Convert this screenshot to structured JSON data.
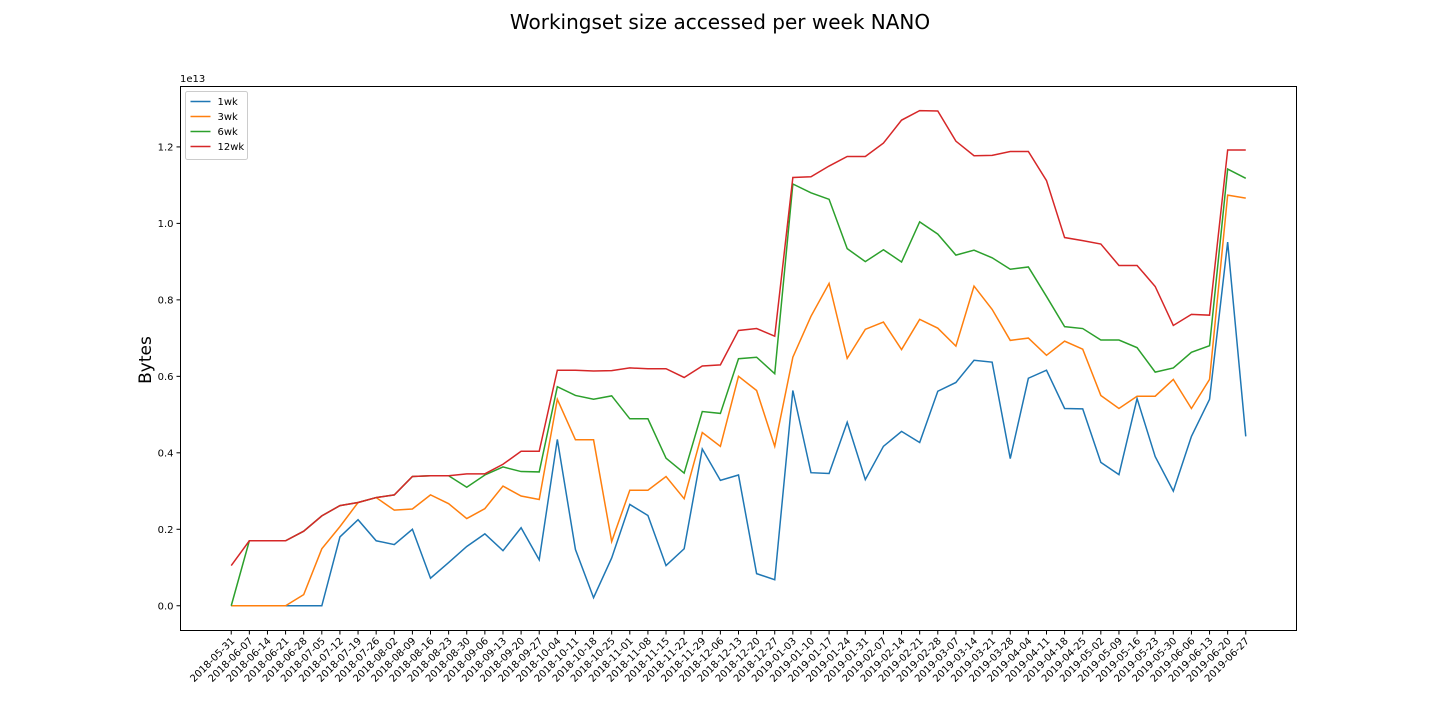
{
  "chart_data": {
    "type": "line",
    "title": "Workingset size accessed per week NANO",
    "ylabel": "Bytes",
    "y_offset_label": "1e13",
    "categories": [
      "2018-05-31",
      "2018-06-07",
      "2018-06-14",
      "2018-06-21",
      "2018-06-28",
      "2018-07-05",
      "2018-07-12",
      "2018-07-19",
      "2018-07-26",
      "2018-08-02",
      "2018-08-09",
      "2018-08-16",
      "2018-08-23",
      "2018-08-30",
      "2018-09-06",
      "2018-09-13",
      "2018-09-20",
      "2018-09-27",
      "2018-10-04",
      "2018-10-11",
      "2018-10-18",
      "2018-10-25",
      "2018-11-01",
      "2018-11-08",
      "2018-11-15",
      "2018-11-22",
      "2018-11-29",
      "2018-12-06",
      "2018-12-13",
      "2018-12-20",
      "2018-12-27",
      "2019-01-03",
      "2019-01-10",
      "2019-01-17",
      "2019-01-24",
      "2019-01-31",
      "2019-02-07",
      "2019-02-14",
      "2019-02-21",
      "2019-02-28",
      "2019-03-07",
      "2019-03-14",
      "2019-03-21",
      "2019-03-28",
      "2019-04-04",
      "2019-04-11",
      "2019-04-18",
      "2019-04-25",
      "2019-05-02",
      "2019-05-09",
      "2019-05-16",
      "2019-05-23",
      "2019-05-30",
      "2019-06-06",
      "2019-06-13",
      "2019-06-20",
      "2019-06-27"
    ],
    "series": [
      {
        "name": "1wk",
        "color": "#1f77b4",
        "values": [
          0,
          0,
          0,
          0,
          0,
          0,
          0.18,
          0.225,
          0.17,
          0.16,
          0.2,
          0.072,
          0.113,
          0.155,
          0.188,
          0.144,
          0.204,
          0.12,
          0.435,
          0.147,
          0.021,
          0.125,
          0.265,
          0.236,
          0.105,
          0.149,
          0.41,
          0.328,
          0.342,
          0.084,
          0.068,
          0.563,
          0.348,
          0.346,
          0.48,
          0.33,
          0.417,
          0.456,
          0.427,
          0.561,
          0.584,
          0.642,
          0.637,
          0.385,
          0.595,
          0.616,
          0.516,
          0.515,
          0.375,
          0.343,
          0.542,
          0.39,
          0.3,
          0.443,
          0.54,
          0.951,
          0.443
        ]
      },
      {
        "name": "3wk",
        "color": "#ff7f0e",
        "values": [
          0,
          0,
          0,
          0,
          0.029,
          0.149,
          0.207,
          0.27,
          0.283,
          0.25,
          0.253,
          0.29,
          0.267,
          0.228,
          0.254,
          0.313,
          0.287,
          0.278,
          0.54,
          0.434,
          0.434,
          0.168,
          0.302,
          0.302,
          0.338,
          0.28,
          0.453,
          0.417,
          0.6,
          0.563,
          0.417,
          0.65,
          0.757,
          0.843,
          0.647,
          0.723,
          0.742,
          0.67,
          0.749,
          0.726,
          0.679,
          0.836,
          0.775,
          0.694,
          0.7,
          0.655,
          0.692,
          0.671,
          0.55,
          0.516,
          0.548,
          0.548,
          0.592,
          0.516,
          0.592,
          1.074,
          1.066
        ]
      },
      {
        "name": "6wk",
        "color": "#2ca02c",
        "values": [
          0,
          0.17,
          0.17,
          0.17,
          0.195,
          0.235,
          0.262,
          0.27,
          0.283,
          0.29,
          0.338,
          0.34,
          0.34,
          0.31,
          0.342,
          0.363,
          0.351,
          0.35,
          0.573,
          0.55,
          0.54,
          0.549,
          0.489,
          0.489,
          0.386,
          0.347,
          0.508,
          0.503,
          0.646,
          0.65,
          0.607,
          1.103,
          1.08,
          1.063,
          0.934,
          0.9,
          0.931,
          0.899,
          1.004,
          0.972,
          0.917,
          0.93,
          0.91,
          0.88,
          0.886,
          0.809,
          0.73,
          0.725,
          0.695,
          0.695,
          0.675,
          0.611,
          0.622,
          0.663,
          0.68,
          1.142,
          1.118
        ]
      },
      {
        "name": "12wk",
        "color": "#d62728",
        "values": [
          0.105,
          0.17,
          0.17,
          0.17,
          0.195,
          0.235,
          0.262,
          0.27,
          0.283,
          0.29,
          0.338,
          0.34,
          0.34,
          0.345,
          0.345,
          0.37,
          0.404,
          0.404,
          0.616,
          0.616,
          0.614,
          0.615,
          0.622,
          0.62,
          0.62,
          0.597,
          0.627,
          0.63,
          0.72,
          0.725,
          0.705,
          1.12,
          1.122,
          1.15,
          1.175,
          1.175,
          1.21,
          1.27,
          1.295,
          1.294,
          1.215,
          1.177,
          1.178,
          1.188,
          1.188,
          1.112,
          0.963,
          0.955,
          0.946,
          0.89,
          0.89,
          0.835,
          0.733,
          0.762,
          0.76,
          1.192,
          1.192
        ]
      }
    ],
    "ylim": [
      -0.0647,
      1.358
    ],
    "yticks": [
      {
        "value": 0,
        "label": "0.0"
      },
      0.2,
      0.4,
      0.6,
      0.8,
      {
        "value": 1,
        "label": "1.0"
      },
      1.2
    ],
    "legend": "upper left"
  }
}
